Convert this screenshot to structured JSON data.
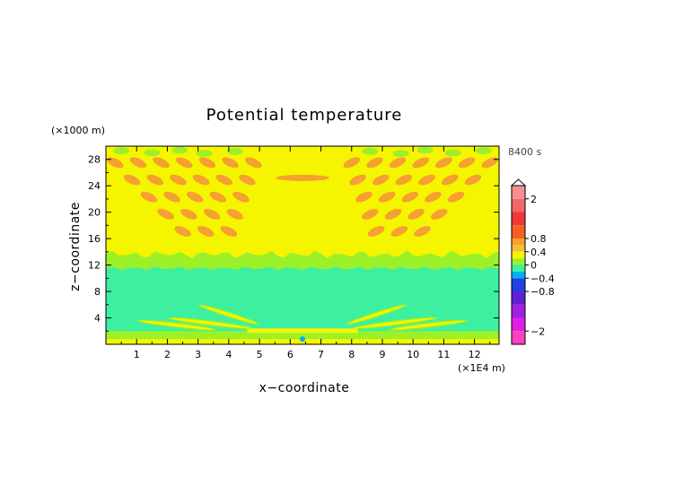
{
  "chart_data": {
    "type": "heatmap",
    "title": "Potential temperature",
    "xlabel": "x−coordinate",
    "ylabel": "z−coordinate",
    "x_unit": "(×1E4 m)",
    "y_unit": "(×1000 m)",
    "time_label": "8400 s",
    "xlim": [
      0,
      12.8
    ],
    "ylim": [
      0,
      30
    ],
    "x_ticks": [
      1,
      2,
      3,
      4,
      5,
      6,
      7,
      8,
      9,
      10,
      11,
      12
    ],
    "y_ticks": [
      4,
      8,
      12,
      16,
      20,
      24,
      28
    ],
    "colorbar": {
      "range": [
        -2.4,
        2.4
      ],
      "tick_labels": [
        {
          "value": 2,
          "label": "2"
        },
        {
          "value": 0.8,
          "label": "0.8"
        },
        {
          "value": 0.4,
          "label": "0.4"
        },
        {
          "value": 0,
          "label": "0"
        },
        {
          "value": -0.4,
          "label": "−0.4"
        },
        {
          "value": -0.8,
          "label": "−0.8"
        },
        {
          "value": -2,
          "label": "−2"
        }
      ],
      "overflow_arrow": "top"
    },
    "regions": [
      {
        "level": 0.1,
        "color": "#f5f500",
        "description_z": [
          12,
          30
        ]
      },
      {
        "level": -0.1,
        "color": "#3cf0a0",
        "description_z": [
          2,
          12
        ]
      },
      {
        "level": 0.0,
        "color": "#9cf028",
        "description_z": [
          0,
          2
        ]
      },
      {
        "level": 0.0,
        "color": "#9cf028",
        "description_z": [
          11.5,
          14.5
        ]
      },
      {
        "level": 0.5,
        "color": "#f5a030",
        "description_z": [
          16,
          28
        ]
      }
    ]
  },
  "colors": {
    "positive_high": "#f5a030",
    "positive_low": "#f5f500",
    "neutral": "#9cf028",
    "negative_low": "#3cf0a0",
    "negative_high": "#00b0f0"
  }
}
